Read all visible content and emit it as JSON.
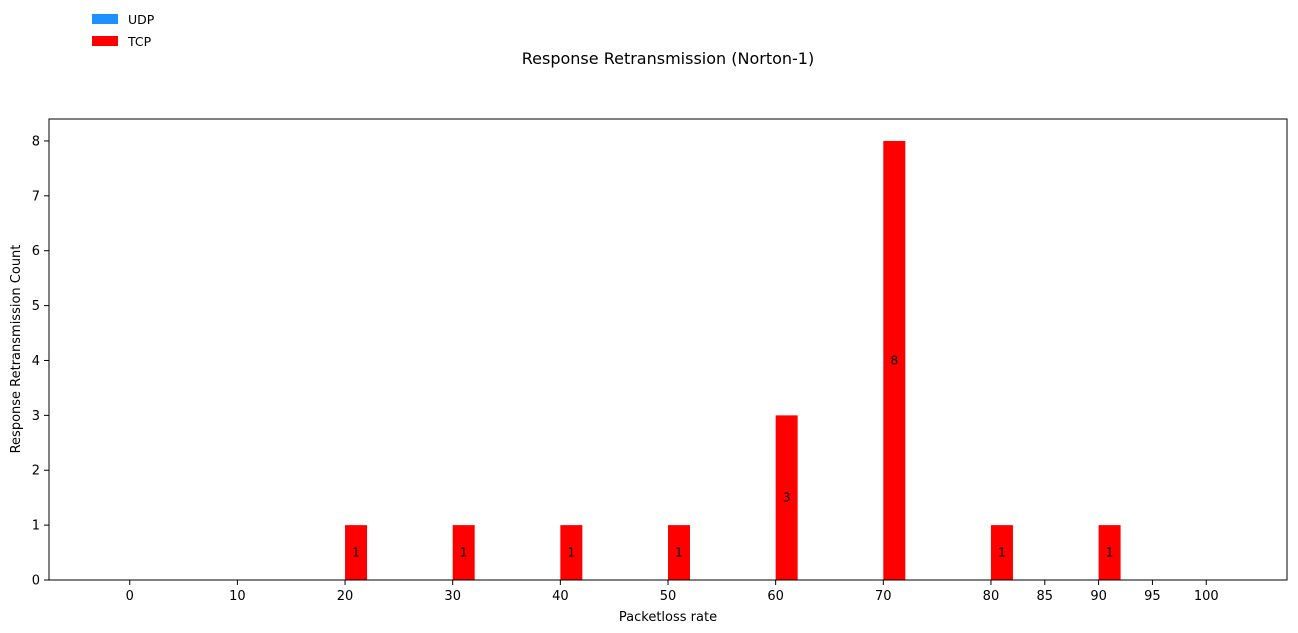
{
  "chart_data": {
    "type": "bar",
    "title": "Response Retransmission (Norton-1)",
    "xlabel": "Packetloss rate",
    "ylabel": "Response Retransmission Count",
    "x_ticks": [
      0,
      10,
      20,
      30,
      40,
      50,
      60,
      70,
      80,
      85,
      90,
      95,
      100
    ],
    "y_ticks": [
      0,
      1,
      2,
      3,
      4,
      5,
      6,
      7,
      8
    ],
    "xlim": [
      -7.5,
      107.5
    ],
    "ylim": [
      0,
      8.4
    ],
    "grid": false,
    "legend_position": "top-left",
    "series": [
      {
        "name": "UDP",
        "color": "#1e90ff",
        "points": []
      },
      {
        "name": "TCP",
        "color": "#ff0000",
        "points": [
          {
            "x": 20,
            "value": 1,
            "label": "1"
          },
          {
            "x": 30,
            "value": 1,
            "label": "1"
          },
          {
            "x": 40,
            "value": 1,
            "label": "1"
          },
          {
            "x": 50,
            "value": 1,
            "label": "1"
          },
          {
            "x": 60,
            "value": 3,
            "label": "3"
          },
          {
            "x": 70,
            "value": 8,
            "label": "8"
          },
          {
            "x": 80,
            "value": 1,
            "label": "1"
          },
          {
            "x": 90,
            "value": 1,
            "label": "1"
          }
        ]
      }
    ]
  }
}
